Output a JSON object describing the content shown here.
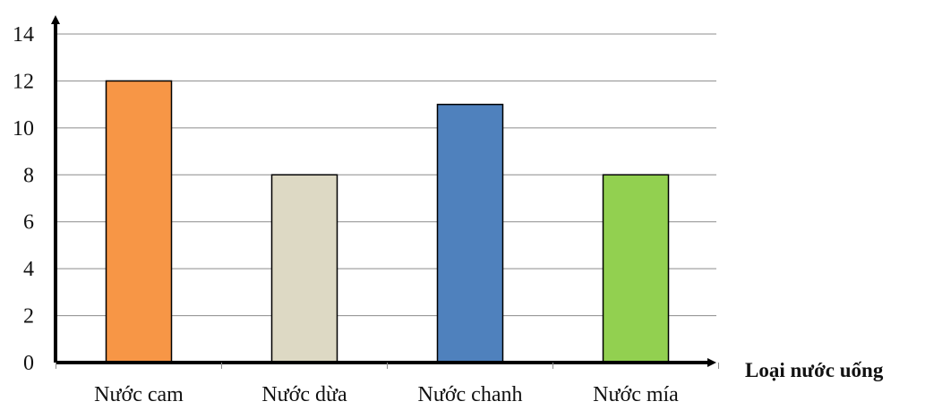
{
  "chart_data": {
    "type": "bar",
    "categories": [
      "Nước cam",
      "Nước dừa",
      "Nước chanh",
      "Nước mía"
    ],
    "values": [
      12,
      8,
      11,
      8
    ],
    "colors": [
      "#F79646",
      "#DDD9C4",
      "#4F81BD",
      "#92D050"
    ],
    "title": "",
    "xlabel": "Loại nước uống",
    "ylabel": "",
    "ylim": [
      0,
      14
    ],
    "yticks": [
      0,
      2,
      4,
      6,
      8,
      10,
      12,
      14
    ],
    "grid": true,
    "legend": "none"
  }
}
